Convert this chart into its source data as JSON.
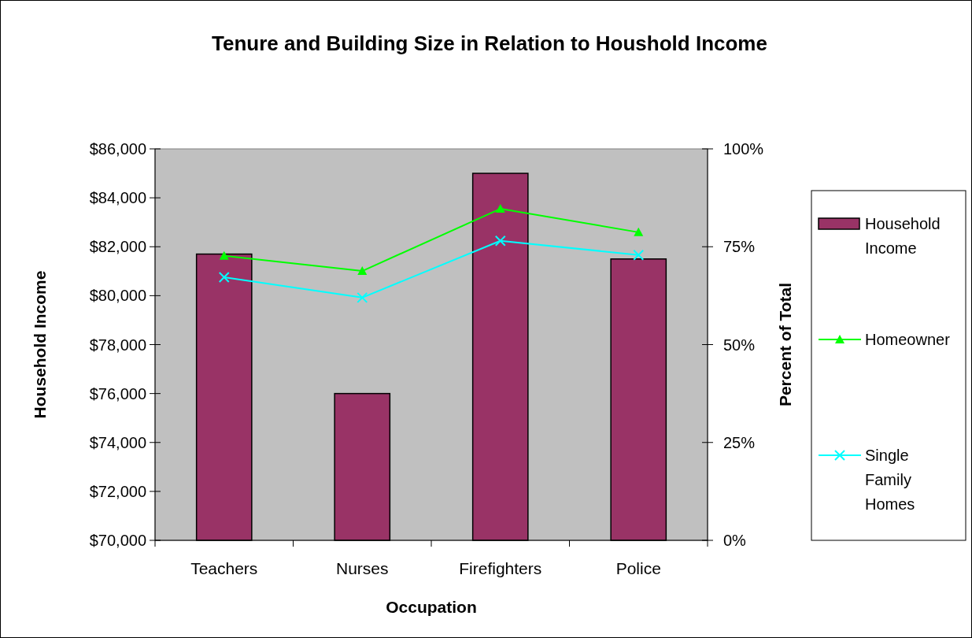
{
  "chart_data": {
    "type": "bar",
    "title": "Tenure and Building Size in Relation to Houshold Income",
    "xlabel": "Occupation",
    "ylabel": "Household Income",
    "y2label": "Percent of Total",
    "categories": [
      "Teachers",
      "Nurses",
      "Firefighters",
      "Police"
    ],
    "series": [
      {
        "name": "Household Income",
        "color": "#993366",
        "values": [
          81700,
          76000,
          85000,
          81500
        ]
      },
      {
        "name": "Homeowner",
        "type": "line",
        "axis": "y2",
        "marker": "triangle",
        "color": "#00ff00",
        "values": [
          72.7,
          68.8,
          84.7,
          78.7
        ]
      },
      {
        "name": "Single Family Homes",
        "type": "line",
        "axis": "y2",
        "marker": "cross",
        "color": "#00ffff",
        "values": [
          67.2,
          62.0,
          76.5,
          72.9
        ]
      }
    ],
    "ylim": [
      70000,
      86000
    ],
    "yticks": [
      {
        "value": 70000,
        "label": "$70,000"
      },
      {
        "value": 72000,
        "label": "$72,000"
      },
      {
        "value": 74000,
        "label": "$74,000"
      },
      {
        "value": 76000,
        "label": "$76,000"
      },
      {
        "value": 78000,
        "label": "$78,000"
      },
      {
        "value": 80000,
        "label": "$80,000"
      },
      {
        "value": 82000,
        "label": "$82,000"
      },
      {
        "value": 84000,
        "label": "$84,000"
      },
      {
        "value": 86000,
        "label": "$86,000"
      }
    ],
    "y2lim": [
      0,
      100
    ],
    "y2ticks": [
      {
        "value": 0,
        "label": "0%"
      },
      {
        "value": 25,
        "label": "25%"
      },
      {
        "value": 50,
        "label": "50%"
      },
      {
        "value": 75,
        "label": "75%"
      },
      {
        "value": 100,
        "label": "100%"
      }
    ],
    "grid": false,
    "legend": "right"
  }
}
